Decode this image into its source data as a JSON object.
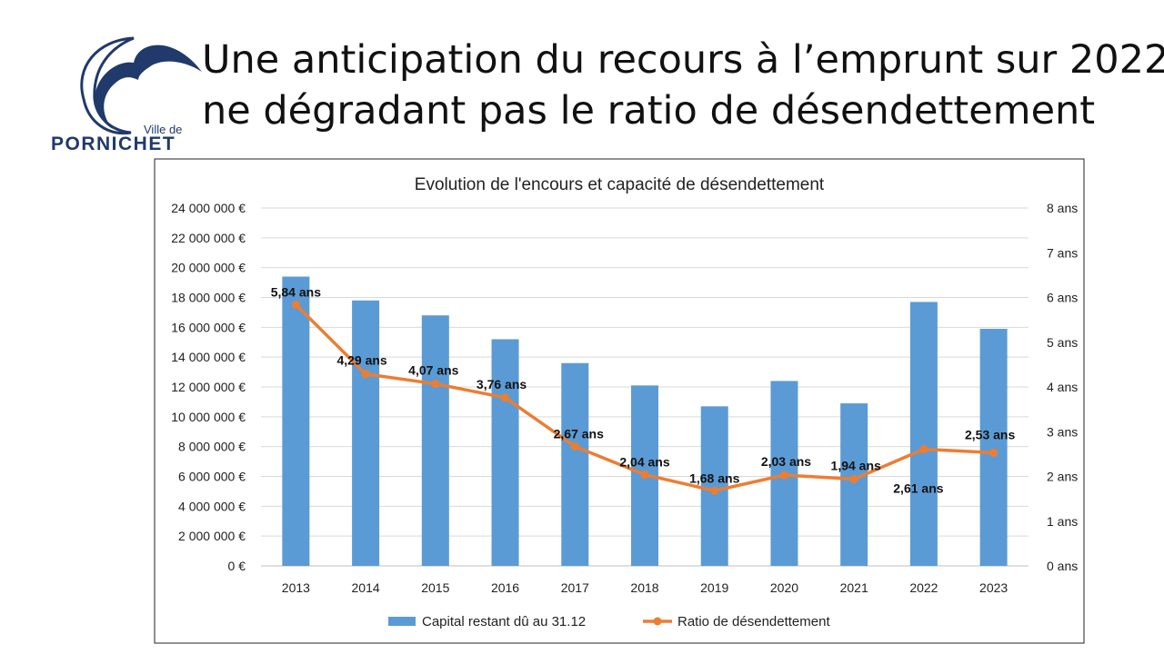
{
  "logo": {
    "top_text": "Ville de",
    "name": "PORNICHET",
    "accent": "#1f3a6b"
  },
  "slide": {
    "title_line1": "Une anticipation du recours à l’emprunt sur 2022",
    "title_line2": "ne dégradant pas le ratio de désendettement"
  },
  "chart_data": {
    "type": "bar",
    "title": "Evolution de l'encours et capacité de désendettement",
    "categories": [
      "2013",
      "2014",
      "2015",
      "2016",
      "2017",
      "2018",
      "2019",
      "2020",
      "2021",
      "2022",
      "2023"
    ],
    "series": [
      {
        "name": "Capital restant dû au 31.12",
        "type": "bar",
        "axis": "left",
        "color": "#5b9bd5",
        "values": [
          19400000,
          17800000,
          16800000,
          15200000,
          13600000,
          12100000,
          10700000,
          12400000,
          10900000,
          17700000,
          15900000
        ]
      },
      {
        "name": "Ratio de désendettement",
        "type": "line",
        "axis": "right",
        "color": "#ed7d31",
        "values": [
          5.84,
          4.29,
          4.07,
          3.76,
          2.67,
          2.04,
          1.68,
          2.03,
          1.94,
          2.61,
          2.53
        ],
        "labels": [
          "5,84 ans",
          "4,29 ans",
          "4,07 ans",
          "3,76 ans",
          "2,67 ans",
          "2,04 ans",
          "1,68 ans",
          "2,03 ans",
          "1,94 ans",
          "2,61 ans",
          "2,53 ans"
        ]
      }
    ],
    "y_left": {
      "ylim": [
        0,
        24000000
      ],
      "ticks": [
        "0 €",
        "2 000 000 €",
        "4 000 000 €",
        "6 000 000 €",
        "8 000 000 €",
        "10 000 000 €",
        "12 000 000 €",
        "14 000 000 €",
        "16 000 000 €",
        "18 000 000 €",
        "20 000 000 €",
        "22 000 000 €",
        "24 000 000 €"
      ]
    },
    "y_right": {
      "ylim": [
        0,
        8
      ],
      "ticks": [
        "0 ans",
        "1 ans",
        "2 ans",
        "3 ans",
        "4 ans",
        "5 ans",
        "6 ans",
        "7 ans",
        "8 ans"
      ]
    },
    "grid": true,
    "legend_position": "bottom"
  }
}
